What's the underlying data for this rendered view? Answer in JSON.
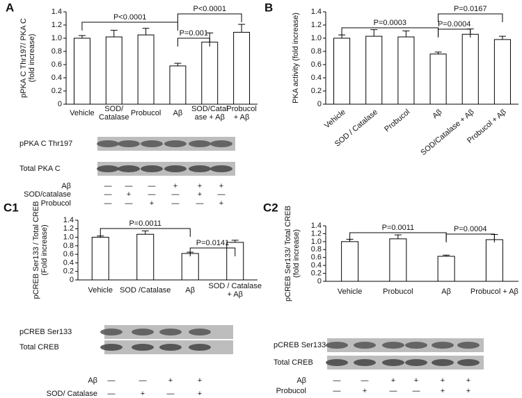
{
  "chart_data": [
    {
      "type": "bar",
      "categories": [
        "Vehicle",
        "SOD/\nCatalase",
        "Probucol",
        "Aβ",
        "SOD/Catal\nase + Aβ",
        "Probucol\n+ Aβ"
      ],
      "values": [
        1.0,
        1.02,
        1.05,
        0.58,
        0.94,
        1.09
      ],
      "errors": [
        0.04,
        0.1,
        0.1,
        0.04,
        0.14,
        0.12
      ],
      "y_label": "pPKA C Thr197/ PKA C\n(fold increase)",
      "color": "#ffffff",
      "ylim": [
        0,
        1.4
      ],
      "yticks": [
        0,
        0.2,
        0.4,
        0.6,
        0.8,
        {
          "value": 1,
          "label": "1.0"
        },
        1.2,
        1.4
      ],
      "annotations": [
        "P<0.0001",
        "P=0.001",
        "P<0.0001"
      ]
    },
    {
      "type": "bar",
      "categories": [
        "Vehicle",
        "SOD / Catalase",
        "Probucol",
        "Aβ",
        "SOD/Catalase + Aβ",
        "Probucol + Aβ"
      ],
      "values": [
        1.0,
        1.03,
        1.02,
        0.76,
        1.06,
        0.98
      ],
      "errors": [
        0.05,
        0.1,
        0.09,
        0.03,
        0.08,
        0.05
      ],
      "y_label": "PKA activity (fold increase)",
      "color": "#ffffff",
      "ylim": [
        0,
        1.4
      ],
      "yticks": [
        0,
        0.2,
        0.4,
        0.6,
        0.8,
        {
          "value": 1,
          "label": "1.0"
        },
        1.2,
        1.4
      ],
      "annotations": [
        "P=0.0003",
        "P=0.0004",
        "P=0.0167"
      ]
    },
    {
      "type": "bar",
      "categories": [
        "Vehicle",
        "SOD  /Catalase",
        "Aβ",
        "SOD / Catalase\n+ Aβ"
      ],
      "values": [
        1.0,
        1.07,
        0.62,
        0.88
      ],
      "errors": [
        0.03,
        0.08,
        0.03,
        0.05
      ],
      "y_label": "pCREB Ser133 / Total CREB\n(Fold increase)",
      "color": "#ffffff",
      "ylim": [
        0,
        1.4
      ],
      "yticks": [
        0,
        0.2,
        0.4,
        0.6,
        0.8,
        {
          "value": 1,
          "label": "1.0"
        },
        1.2,
        1.4
      ],
      "annotations": [
        "P=0.0011",
        "P=0.0141"
      ]
    },
    {
      "type": "bar",
      "categories": [
        "Vehicle",
        "Probucol",
        "Aβ",
        "Probucol  + Aβ"
      ],
      "values": [
        1.0,
        1.07,
        0.63,
        1.05
      ],
      "errors": [
        0.06,
        0.1,
        0.03,
        0.13
      ],
      "y_label": "pCREB Ser133/ Total CREB\n(fold increase)",
      "color": "#ffffff",
      "ylim": [
        0,
        1.4
      ],
      "yticks": [
        0,
        0.2,
        0.4,
        0.6,
        0.8,
        {
          "value": 1,
          "label": "1.0"
        },
        1.2,
        1.4
      ],
      "annotations": [
        "P=0.0011",
        "P=0.0004"
      ]
    }
  ],
  "panels": [
    {
      "letter": "A",
      "blot": {
        "bands": [
          "pPKA C Thr197",
          "Total PKA C"
        ],
        "rows": [
          {
            "label": "Aβ",
            "marks": [
              "—",
              "—",
              "—",
              "+",
              "+",
              "+"
            ]
          },
          {
            "label": "SOD/catalase",
            "marks": [
              "—",
              "+",
              "—",
              "—",
              "+",
              "—"
            ]
          },
          {
            "label": "Probucol",
            "marks": [
              "—",
              "—",
              "+",
              "—",
              "—",
              "+"
            ]
          }
        ]
      }
    },
    {
      "letter": "B"
    },
    {
      "letter": "C1",
      "blot": {
        "bands": [
          "pCREB Ser133",
          "Total CREB"
        ],
        "rows": [
          {
            "label": "Aβ",
            "marks": [
              "—",
              "—",
              "+",
              "+"
            ]
          },
          {
            "label": "SOD/ Catalase",
            "marks": [
              "—",
              "+",
              "—",
              "+"
            ]
          }
        ]
      }
    },
    {
      "letter": "C2",
      "blot": {
        "bands": [
          "pCREB Ser133",
          "Total CREB"
        ],
        "rows": [
          {
            "label": "Aβ",
            "marks": [
              "—",
              "—",
              "+",
              "+",
              "+",
              "+"
            ]
          },
          {
            "label": "Probucol",
            "marks": [
              "—",
              "+",
              "—",
              "—",
              "+",
              "+"
            ]
          }
        ]
      }
    }
  ]
}
